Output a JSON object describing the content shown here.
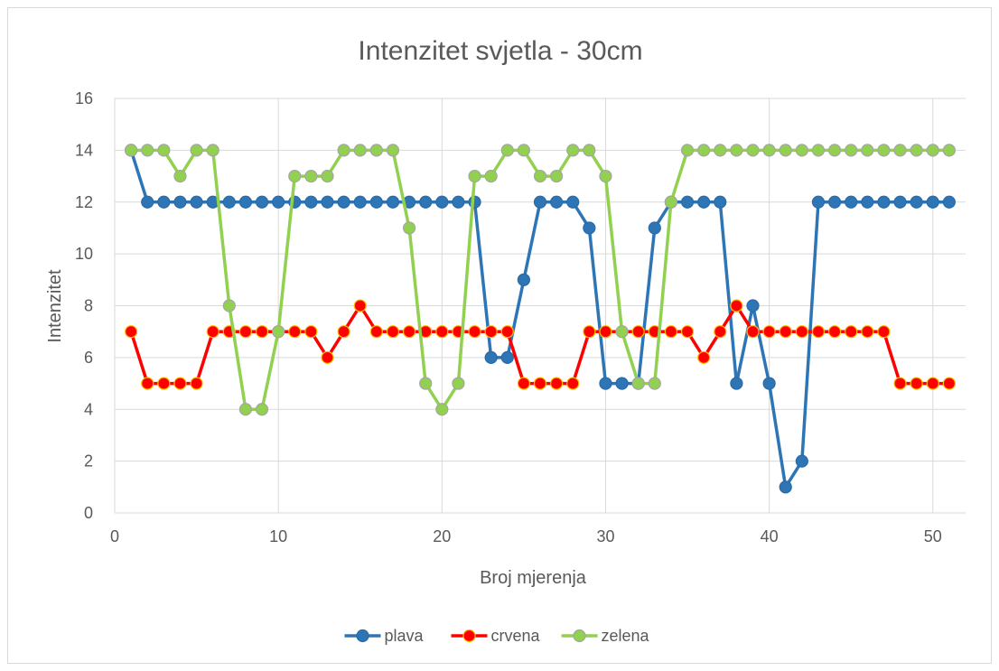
{
  "chart_data": {
    "type": "line",
    "title": "Intenzitet svjetla - 30cm",
    "xlabel": "Broj mjerenja",
    "ylabel": "Intenzitet",
    "xlim": [
      0,
      52
    ],
    "ylim": [
      0,
      16
    ],
    "xticks": [
      "0",
      "10",
      "20",
      "30",
      "40",
      "50"
    ],
    "yticks": [
      "0",
      "2",
      "4",
      "6",
      "8",
      "10",
      "12",
      "14",
      "16"
    ],
    "grid": true,
    "legend_position": "bottom",
    "x": [
      1,
      2,
      3,
      4,
      5,
      6,
      7,
      8,
      9,
      10,
      11,
      12,
      13,
      14,
      15,
      16,
      17,
      18,
      19,
      20,
      21,
      22,
      23,
      24,
      25,
      26,
      27,
      28,
      29,
      30,
      31,
      32,
      33,
      34,
      35,
      36,
      37,
      38,
      39,
      40,
      41,
      42,
      43,
      44,
      45,
      46,
      47,
      48,
      49,
      50,
      51
    ],
    "series": [
      {
        "name": "plava",
        "color": "#2e75b6",
        "values": [
          14,
          12,
          12,
          12,
          12,
          12,
          12,
          12,
          12,
          12,
          12,
          12,
          12,
          12,
          12,
          12,
          12,
          12,
          12,
          12,
          12,
          12,
          6,
          6,
          9,
          12,
          12,
          12,
          11,
          5,
          5,
          5,
          11,
          12,
          12,
          12,
          12,
          5,
          8,
          5,
          1,
          2,
          12,
          12,
          12,
          12,
          12,
          12,
          12,
          12,
          12
        ]
      },
      {
        "name": "crvena",
        "color": "#ff0000",
        "values": [
          7,
          5,
          5,
          5,
          5,
          7,
          7,
          7,
          7,
          7,
          7,
          7,
          6,
          7,
          8,
          7,
          7,
          7,
          7,
          7,
          7,
          7,
          7,
          7,
          5,
          5,
          5,
          5,
          7,
          7,
          7,
          7,
          7,
          7,
          7,
          6,
          7,
          8,
          7,
          7,
          7,
          7,
          7,
          7,
          7,
          7,
          7,
          5,
          5,
          5,
          5
        ]
      },
      {
        "name": "zelena",
        "color": "#92d050",
        "values": [
          14,
          14,
          14,
          13,
          14,
          14,
          8,
          4,
          4,
          7,
          13,
          13,
          13,
          14,
          14,
          14,
          14,
          11,
          5,
          4,
          5,
          13,
          13,
          14,
          14,
          13,
          13,
          14,
          14,
          13,
          7,
          5,
          5,
          12,
          14,
          14,
          14,
          14,
          14,
          14,
          14,
          14,
          14,
          14,
          14,
          14,
          14,
          14,
          14,
          14,
          14
        ]
      }
    ]
  }
}
